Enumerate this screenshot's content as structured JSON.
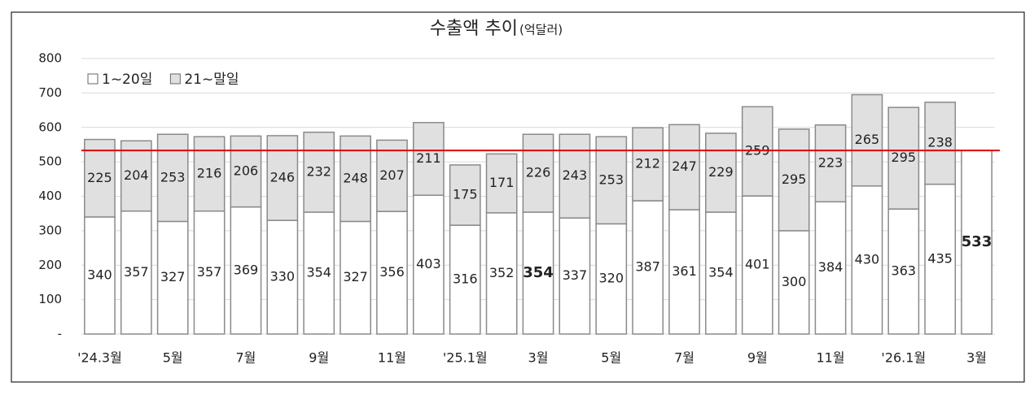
{
  "chart_data": {
    "type": "stacked_bar",
    "title": "수출액 추이",
    "unit": "(억달러)",
    "categories": [
      "'24.3월",
      null,
      "5월",
      null,
      "7월",
      null,
      "9월",
      null,
      "11월",
      null,
      "'25.1월",
      null,
      "3월",
      null,
      "5월",
      null,
      "7월",
      null,
      "9월",
      null,
      "11월",
      null,
      "'26.1월",
      null,
      "3월"
    ],
    "series": [
      {
        "name": "1~20일",
        "color": "#ffffff",
        "values": [
          340,
          357,
          327,
          357,
          369,
          330,
          354,
          327,
          356,
          403,
          316,
          352,
          354,
          337,
          320,
          387,
          361,
          354,
          401,
          300,
          384,
          430,
          363,
          435,
          533
        ]
      },
      {
        "name": "21~말일",
        "color": "#e0e0e0",
        "values": [
          225,
          204,
          253,
          216,
          206,
          246,
          232,
          248,
          207,
          211,
          175,
          171,
          226,
          243,
          253,
          212,
          247,
          229,
          259,
          295,
          223,
          265,
          295,
          238,
          null
        ]
      }
    ],
    "ylim": [
      0,
      800
    ],
    "yticks": [
      {
        "value": 0,
        "label": "-"
      },
      100,
      200,
      300,
      400,
      500,
      600,
      700,
      800
    ],
    "grid": true,
    "legend": "top-left",
    "reference_line": {
      "value": 533,
      "color": "#e00000"
    }
  }
}
